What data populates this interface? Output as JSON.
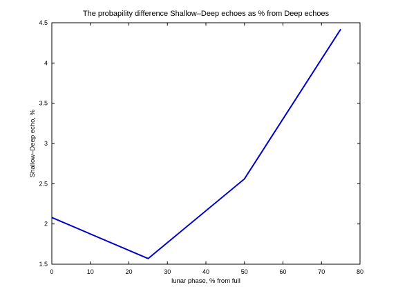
{
  "chart_data": {
    "type": "line",
    "title": "The probapility difference Shallow–Deep echoes as % from Deep echoes",
    "xlabel": "lunar phase, % from full",
    "ylabel": "Shallow–Deep echo, %",
    "xlim": [
      0,
      80
    ],
    "ylim": [
      1.5,
      4.5
    ],
    "xticks": [
      "0",
      "10",
      "20",
      "30",
      "40",
      "50",
      "60",
      "70",
      "80"
    ],
    "yticks": [
      "1.5",
      "2",
      "2.5",
      "3",
      "3.5",
      "4",
      "4.5"
    ],
    "grid": false,
    "series": [
      {
        "x": [
          0,
          25,
          50,
          75
        ],
        "y": [
          2.08,
          1.57,
          2.56,
          4.42
        ],
        "color": "#0000c8"
      }
    ]
  }
}
